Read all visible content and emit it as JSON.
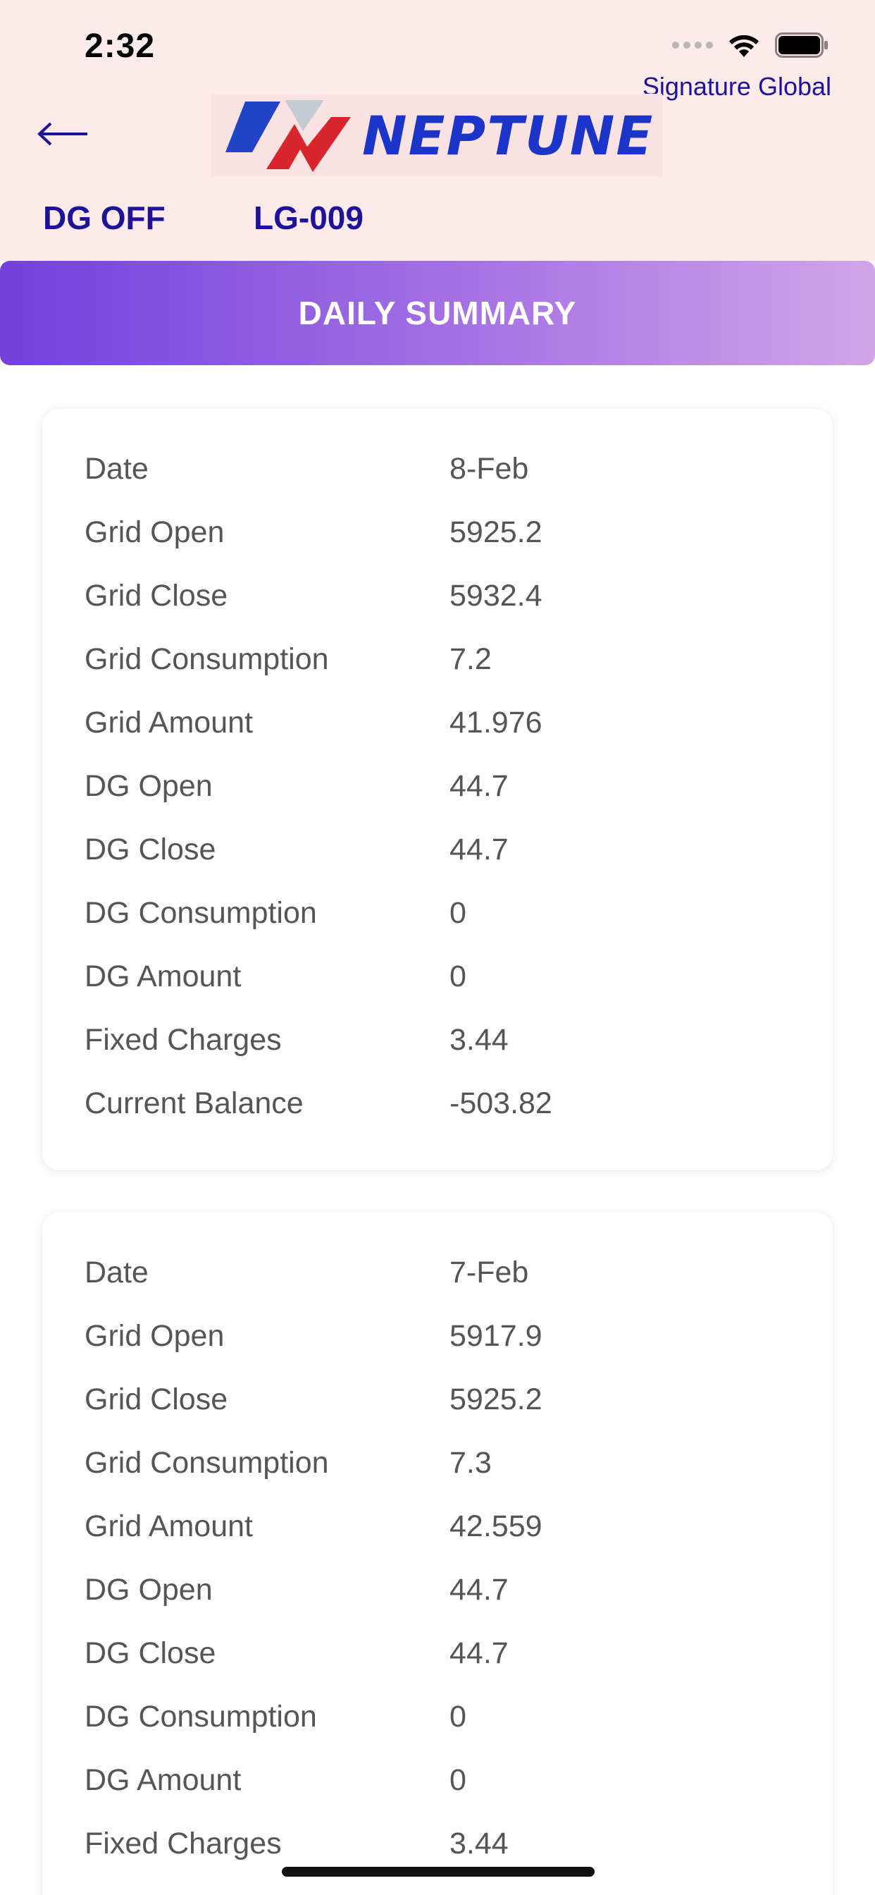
{
  "status_bar": {
    "time": "2:32"
  },
  "header": {
    "org_name": "Signature Global",
    "logo_text": "NEPTUNE",
    "dg_status": "DG OFF",
    "meter_id": "LG-009"
  },
  "summary": {
    "title": "DAILY SUMMARY"
  },
  "records": [
    {
      "rows": [
        {
          "label": "Date",
          "value": "8-Feb"
        },
        {
          "label": "Grid Open",
          "value": "5925.2"
        },
        {
          "label": "Grid Close",
          "value": "5932.4"
        },
        {
          "label": "Grid Consumption",
          "value": "7.2"
        },
        {
          "label": "Grid Amount",
          "value": "41.976"
        },
        {
          "label": "DG Open",
          "value": "44.7"
        },
        {
          "label": "DG Close",
          "value": "44.7"
        },
        {
          "label": "DG Consumption",
          "value": "0"
        },
        {
          "label": "DG Amount",
          "value": "0"
        },
        {
          "label": "Fixed Charges",
          "value": "3.44"
        },
        {
          "label": "Current Balance",
          "value": "-503.82"
        }
      ]
    },
    {
      "rows": [
        {
          "label": "Date",
          "value": "7-Feb"
        },
        {
          "label": "Grid Open",
          "value": "5917.9"
        },
        {
          "label": "Grid Close",
          "value": "5925.2"
        },
        {
          "label": "Grid Consumption",
          "value": "7.3"
        },
        {
          "label": "Grid Amount",
          "value": "42.559"
        },
        {
          "label": "DG Open",
          "value": "44.7"
        },
        {
          "label": "DG Close",
          "value": "44.7"
        },
        {
          "label": "DG Consumption",
          "value": "0"
        },
        {
          "label": "DG Amount",
          "value": "0"
        },
        {
          "label": "Fixed Charges",
          "value": "3.44"
        }
      ]
    }
  ],
  "icons": {
    "back": "back-arrow-icon",
    "wifi": "wifi-icon",
    "battery": "battery-icon",
    "signal": "cellular-signal-icon"
  },
  "colors": {
    "header_bg": "#fdeaea",
    "accent_text": "#1d1399",
    "gradient_start": "#7340de",
    "gradient_end": "#d2a4e8"
  }
}
